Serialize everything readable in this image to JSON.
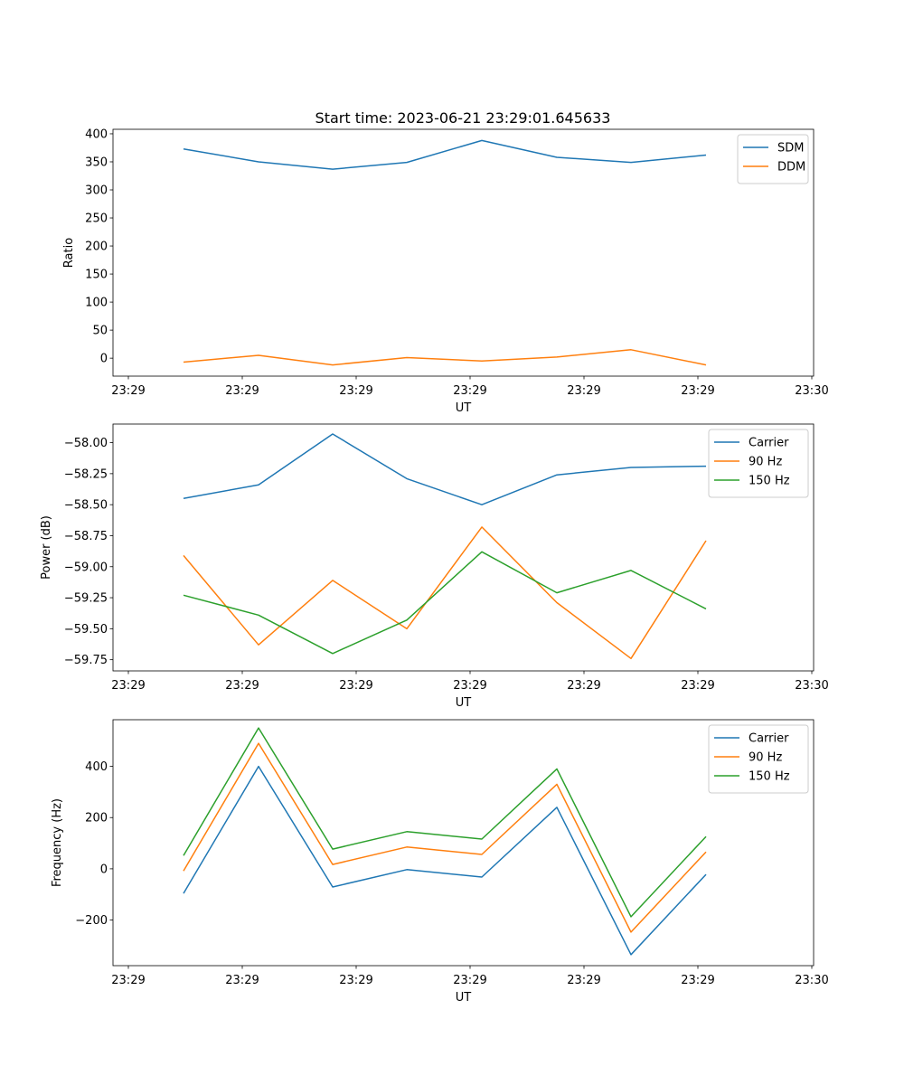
{
  "figure": {
    "title": "Start time: 2023-06-21 23:29:01.645633"
  },
  "chart_data": [
    {
      "type": "line",
      "title": "Start time: 2023-06-21 23:29:01.645633",
      "xlabel": "UT",
      "ylabel": "Ratio",
      "x_tick_labels": [
        "23:29",
        "23:29",
        "23:29",
        "23:29",
        "23:29",
        "23:29",
        "23:29"
      ],
      "x_edge_label": "23:30",
      "y_ticks": [
        0,
        50,
        100,
        150,
        200,
        250,
        300,
        350,
        400
      ],
      "y_tick_labels": [
        "0",
        "50",
        "100",
        "150",
        "200",
        "250",
        "300",
        "350",
        "400"
      ],
      "ylim": [
        -32,
        408
      ],
      "legend": "top-right",
      "series": [
        {
          "name": "SDM",
          "color": "#1f77b4",
          "values": [
            373,
            350,
            337,
            349,
            388,
            358,
            349,
            362
          ]
        },
        {
          "name": "DDM",
          "color": "#ff7f0e",
          "values": [
            -7,
            5,
            -12,
            1,
            -5,
            2,
            15,
            -12
          ]
        }
      ]
    },
    {
      "type": "line",
      "xlabel": "UT",
      "ylabel": "Power (dB)",
      "x_tick_labels": [
        "23:29",
        "23:29",
        "23:29",
        "23:29",
        "23:29",
        "23:29",
        "23:29"
      ],
      "x_edge_label": "23:30",
      "y_ticks": [
        -59.75,
        -59.5,
        -59.25,
        -59.0,
        -58.75,
        -58.5,
        -58.25,
        -58.0
      ],
      "y_tick_labels": [
        "−59.75",
        "−59.50",
        "−59.25",
        "−59.00",
        "−58.75",
        "−58.50",
        "−58.25",
        "−58.00"
      ],
      "ylim": [
        -59.84,
        -57.85
      ],
      "legend": "top-right",
      "series": [
        {
          "name": "Carrier",
          "color": "#1f77b4",
          "values": [
            -58.45,
            -58.34,
            -57.93,
            -58.29,
            -58.5,
            -58.26,
            -58.2,
            -58.19
          ]
        },
        {
          "name": "90 Hz",
          "color": "#ff7f0e",
          "values": [
            -58.91,
            -59.63,
            -59.11,
            -59.5,
            -58.68,
            -59.29,
            -59.74,
            -58.79
          ]
        },
        {
          "name": "150 Hz",
          "color": "#2ca02c",
          "values": [
            -59.23,
            -59.39,
            -59.7,
            -59.43,
            -58.88,
            -59.21,
            -59.03,
            -59.34
          ]
        }
      ]
    },
    {
      "type": "line",
      "xlabel": "UT",
      "ylabel": "Frequency (Hz)",
      "x_tick_labels": [
        "23:29",
        "23:29",
        "23:29",
        "23:29",
        "23:29",
        "23:29",
        "23:29"
      ],
      "x_edge_label": "23:30",
      "y_ticks": [
        -200,
        0,
        200,
        400
      ],
      "y_tick_labels": [
        "−200",
        "0",
        "200",
        "400"
      ],
      "ylim": [
        -378,
        582
      ],
      "legend": "top-right",
      "series": [
        {
          "name": "Carrier",
          "color": "#1f77b4",
          "values": [
            -96,
            400,
            -71,
            -3,
            -32,
            240,
            -335,
            -22
          ]
        },
        {
          "name": "90 Hz",
          "color": "#ff7f0e",
          "values": [
            -8,
            490,
            17,
            85,
            56,
            330,
            -247,
            66
          ]
        },
        {
          "name": "150 Hz",
          "color": "#2ca02c",
          "values": [
            52,
            550,
            77,
            145,
            116,
            390,
            -187,
            126
          ]
        }
      ]
    }
  ]
}
